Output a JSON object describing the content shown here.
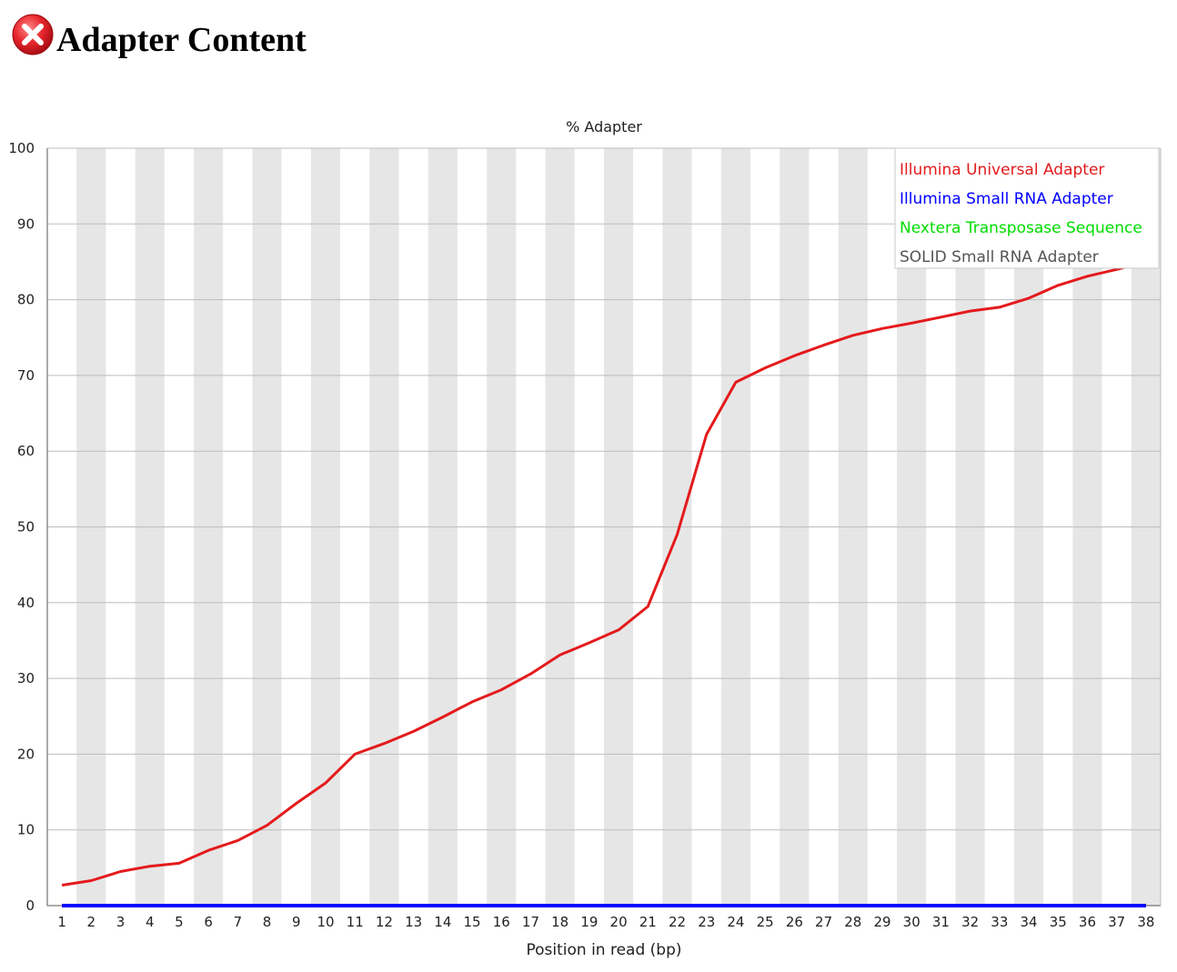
{
  "header": {
    "title": "Adapter Content",
    "status": "fail",
    "status_icon": "fail-cross-icon",
    "status_color": "#e8272e"
  },
  "chart_data": {
    "type": "line",
    "title": "% Adapter",
    "xlabel": "Position in read (bp)",
    "ylabel": "",
    "ylim": [
      0,
      100
    ],
    "yticks": [
      0,
      10,
      20,
      30,
      40,
      50,
      60,
      70,
      80,
      90,
      100
    ],
    "categories": [
      "1",
      "2",
      "3",
      "4",
      "5",
      "6",
      "7",
      "8",
      "9",
      "10",
      "11",
      "12",
      "13",
      "14",
      "15",
      "16",
      "17",
      "18",
      "19",
      "20",
      "21",
      "22",
      "23",
      "24",
      "25",
      "26",
      "27",
      "28",
      "29",
      "30",
      "31",
      "32",
      "33",
      "34",
      "35",
      "36",
      "37",
      "38"
    ],
    "grid": true,
    "legend_position": "top-right",
    "series": [
      {
        "name": "Illumina Universal Adapter",
        "color": "#e41a1c",
        "values": [
          2.7,
          3.3,
          4.5,
          5.2,
          5.6,
          7.3,
          8.6,
          10.6,
          13.5,
          16.2,
          20.0,
          21.4,
          23.0,
          24.9,
          26.9,
          28.5,
          30.6,
          33.1,
          34.7,
          36.4,
          39.5,
          49.0,
          62.2,
          69.1,
          71.0,
          72.6,
          74.0,
          75.3,
          76.2,
          76.9,
          77.7,
          78.5,
          79.0,
          80.2,
          81.9,
          83.1,
          84.0,
          85.0
        ]
      },
      {
        "name": "Illumina Small RNA Adapter",
        "color": "#0000ff",
        "values": [
          0,
          0,
          0,
          0,
          0,
          0,
          0,
          0,
          0,
          0,
          0,
          0,
          0,
          0,
          0,
          0,
          0,
          0,
          0,
          0,
          0,
          0,
          0,
          0,
          0,
          0,
          0,
          0,
          0,
          0,
          0,
          0,
          0,
          0,
          0,
          0,
          0,
          0
        ]
      },
      {
        "name": "Nextera Transposase Sequence",
        "color": "#00dd00",
        "values": [
          0,
          0,
          0,
          0,
          0,
          0,
          0,
          0,
          0,
          0,
          0,
          0,
          0,
          0,
          0,
          0,
          0,
          0,
          0,
          0,
          0,
          0,
          0,
          0,
          0,
          0,
          0,
          0,
          0,
          0,
          0,
          0,
          0,
          0,
          0,
          0,
          0,
          0
        ]
      },
      {
        "name": "SOLID Small RNA Adapter",
        "color": "#555555",
        "values": [
          0,
          0,
          0,
          0,
          0,
          0,
          0,
          0,
          0,
          0,
          0,
          0,
          0,
          0,
          0,
          0,
          0,
          0,
          0,
          0,
          0,
          0,
          0,
          0,
          0,
          0,
          0,
          0,
          0,
          0,
          0,
          0,
          0,
          0,
          0,
          0,
          0,
          0
        ]
      }
    ]
  }
}
